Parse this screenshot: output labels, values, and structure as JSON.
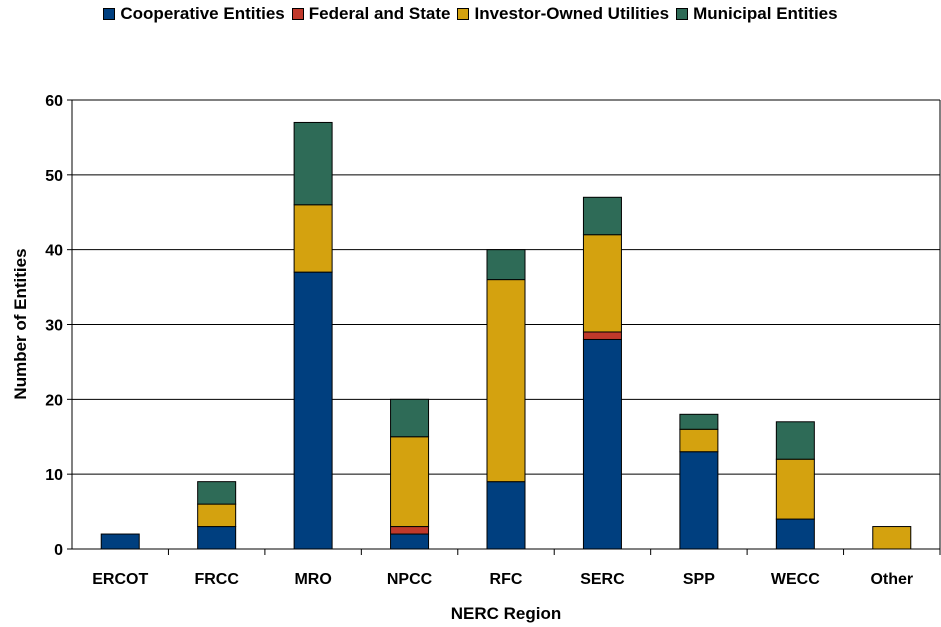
{
  "chart_data": {
    "type": "bar",
    "stacked": true,
    "categories": [
      "ERCOT",
      "FRCC",
      "MRO",
      "NPCC",
      "RFC",
      "SERC",
      "SPP",
      "WECC",
      "Other"
    ],
    "series": [
      {
        "name": "Cooperative Entities",
        "color": "#003F7F",
        "values": [
          2,
          3,
          37,
          2,
          9,
          28,
          13,
          4,
          0
        ]
      },
      {
        "name": "Federal and State",
        "color": "#C0392B",
        "values": [
          0,
          0,
          0,
          1,
          0,
          1,
          0,
          0,
          0
        ]
      },
      {
        "name": "Investor-Owned Utilities",
        "color": "#D4A20F",
        "values": [
          0,
          3,
          9,
          12,
          27,
          13,
          3,
          8,
          3
        ]
      },
      {
        "name": "Municipal Entities",
        "color": "#2E6B57",
        "values": [
          0,
          3,
          11,
          5,
          4,
          5,
          2,
          5,
          0
        ]
      }
    ],
    "xlabel": "NERC Region",
    "ylabel": "Number of Entities",
    "ylim": [
      0,
      60
    ],
    "yticks": [
      0,
      10,
      20,
      30,
      40,
      50,
      60
    ],
    "grid": true,
    "legend": "top"
  }
}
